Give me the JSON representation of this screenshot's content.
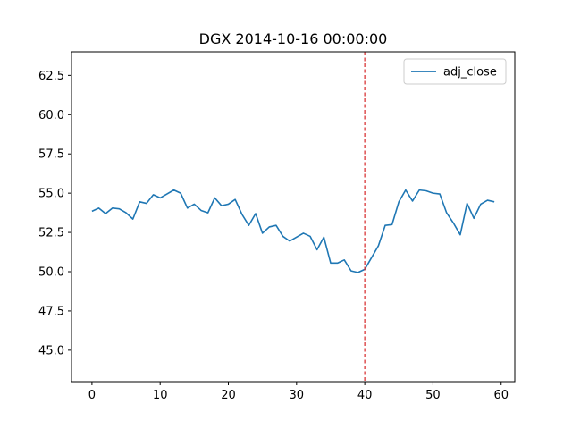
{
  "chart_data": {
    "type": "line",
    "title": "DGX 2014-10-16 00:00:00",
    "xlabel": "",
    "ylabel": "",
    "xlim": [
      -3,
      62
    ],
    "ylim": [
      43.0,
      64.0
    ],
    "x_ticks": [
      0,
      10,
      20,
      30,
      40,
      50,
      60
    ],
    "y_ticks": [
      45.0,
      47.5,
      50.0,
      52.5,
      55.0,
      57.5,
      60.0,
      62.5
    ],
    "y_tick_labels": [
      "45.0",
      "47.5",
      "50.0",
      "52.5",
      "55.0",
      "57.5",
      "60.0",
      "62.5"
    ],
    "grid": false,
    "legend": {
      "placement": "top-right",
      "entries": [
        "adj_close"
      ]
    },
    "vline": {
      "x": 40,
      "color": "#d62728",
      "style": "dashed"
    },
    "series": [
      {
        "name": "adj_close",
        "color": "#1f77b4",
        "x": [
          0,
          1,
          2,
          3,
          4,
          5,
          6,
          7,
          8,
          9,
          10,
          11,
          12,
          13,
          14,
          15,
          16,
          17,
          18,
          19,
          20,
          21,
          22,
          23,
          24,
          25,
          26,
          27,
          28,
          29,
          30,
          31,
          32,
          33,
          34,
          35,
          36,
          37,
          38,
          39,
          40,
          41,
          42,
          43,
          44,
          45,
          46,
          47,
          48,
          49,
          50,
          51,
          52,
          53,
          54,
          55,
          56,
          57,
          58,
          59
        ],
        "values": [
          53.85,
          54.05,
          53.7,
          54.05,
          54.0,
          53.75,
          53.35,
          54.45,
          54.35,
          54.9,
          54.7,
          54.95,
          55.2,
          55.0,
          54.05,
          54.3,
          53.9,
          53.75,
          54.7,
          54.2,
          54.3,
          54.6,
          53.65,
          52.95,
          53.7,
          52.45,
          52.85,
          52.95,
          52.25,
          51.95,
          52.2,
          52.45,
          52.25,
          51.4,
          52.2,
          50.55,
          50.55,
          50.75,
          50.05,
          49.95,
          50.15,
          50.9,
          51.65,
          52.95,
          53.0,
          54.45,
          55.2,
          54.5,
          55.2,
          55.15,
          55.0,
          54.95,
          53.75,
          53.1,
          52.35,
          54.35,
          53.4,
          54.3,
          54.55,
          54.45
        ]
      }
    ]
  }
}
